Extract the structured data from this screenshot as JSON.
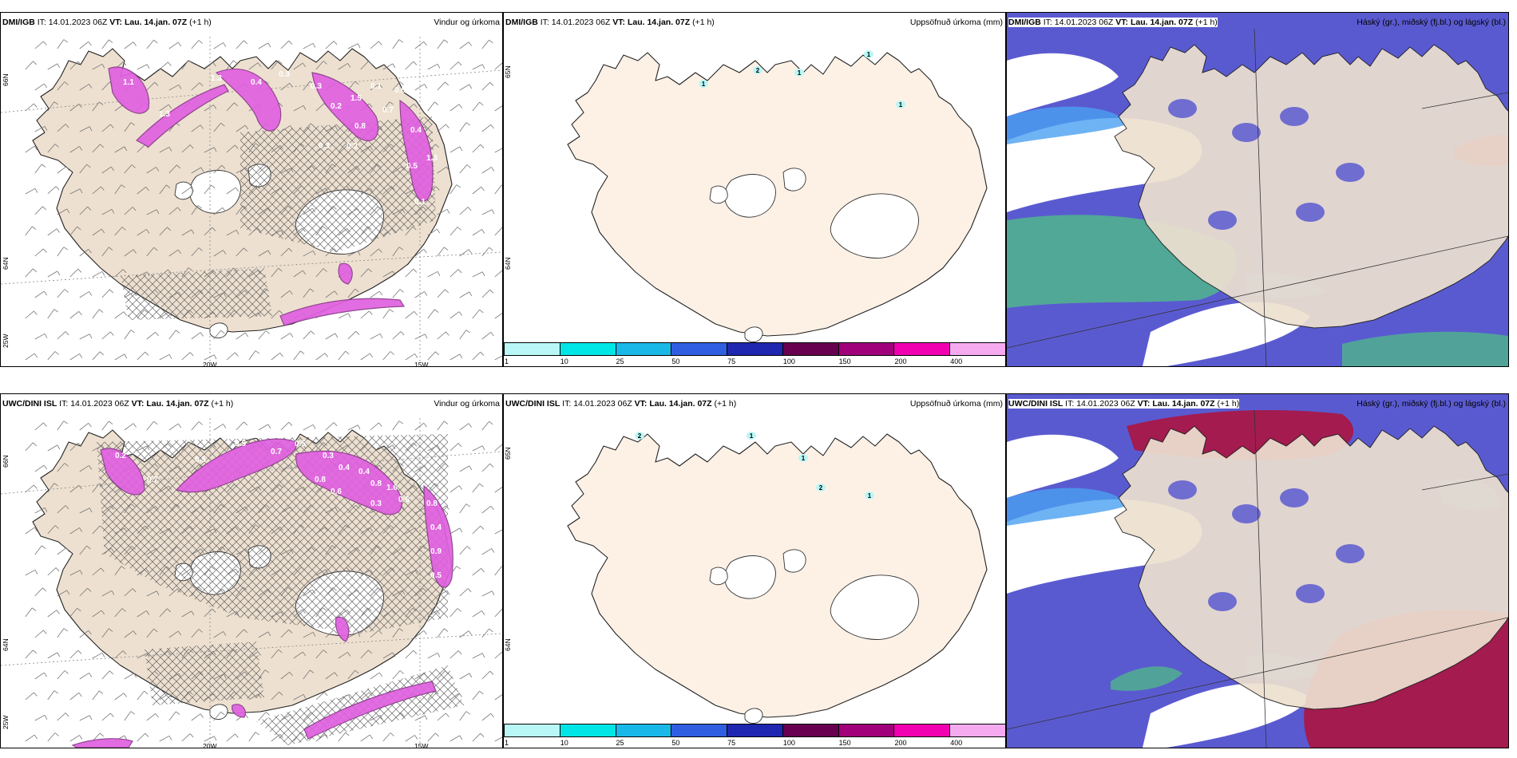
{
  "panels": [
    {
      "id": "p1",
      "model": "DMI/IGB",
      "it_label": "IT:",
      "it": "14.01.2023 06Z",
      "vt_label": "VT:",
      "vt": "Lau. 14.jan. 07Z",
      "lead": "(+1 h)",
      "right": "Vindur og úrkoma",
      "type": "wind",
      "lon_labels": [
        "20W",
        "15W"
      ],
      "lat_labels": [
        "66N",
        "64N",
        "25W"
      ],
      "values": [
        "1.1",
        "1.3",
        "1.3",
        "0.4",
        "0.3",
        "0.3",
        "0.2",
        "1.5",
        "0.1",
        "0.6",
        "0.4",
        "0.5",
        "0.1",
        "1.3",
        "0.8",
        "0.7",
        "0.3",
        "0.2"
      ]
    },
    {
      "id": "p2",
      "model": "DMI/IGB",
      "it_label": "IT:",
      "it": "14.01.2023 06Z",
      "vt_label": "VT:",
      "vt": "Lau. 14.jan. 07Z",
      "lead": "(+1 h)",
      "right": "Uppsöfnuð úrkoma (mm)",
      "type": "accum",
      "lat_labels": [
        "65N",
        "64N"
      ],
      "values": [
        "1",
        "2",
        "1",
        "1",
        "1"
      ]
    },
    {
      "id": "p3",
      "model": "DMI/IGB",
      "it_label": "IT:",
      "it": "14.01.2023 06Z",
      "vt_label": "VT:",
      "vt": "Lau. 14.jan. 07Z",
      "lead": "(+1 h)",
      "right": "Háský (gr.), miðský (fj.bl.) og lágský (bl.)",
      "type": "cloud",
      "high": false
    },
    {
      "id": "p4",
      "model": "UWC/DINI ISL",
      "it_label": "IT:",
      "it": "14.01.2023 06Z",
      "vt_label": "VT:",
      "vt": "Lau. 14.jan. 07Z",
      "lead": "(+1 h)",
      "right": "Vindur og úrkoma",
      "type": "wind",
      "lon_labels": [
        "20W",
        "15W"
      ],
      "lat_labels": [
        "66N",
        "64N",
        "25W"
      ],
      "values": [
        "0.2",
        "0.7",
        "0.5",
        "0.5",
        "0.4",
        "0.7",
        "0.5",
        "0.3",
        "0.4",
        "0.4",
        "0.8",
        "1.6",
        "0.6",
        "0.8",
        "0.4",
        "0.9",
        "0.5",
        "0.3",
        "0.6",
        "0.8"
      ]
    },
    {
      "id": "p5",
      "model": "UWC/DINI ISL",
      "it_label": "IT:",
      "it": "14.01.2023 06Z",
      "vt_label": "VT:",
      "vt": "Lau. 14.jan. 07Z",
      "lead": "(+1 h)",
      "right": "Uppsöfnuð úrkoma (mm)",
      "type": "accum",
      "lat_labels": [
        "65N",
        "64N"
      ],
      "values": [
        "2",
        "1",
        "1",
        "2",
        "1"
      ]
    },
    {
      "id": "p6",
      "model": "UWC/DINI ISL",
      "it_label": "IT:",
      "it": "14.01.2023 06Z",
      "vt_label": "VT:",
      "vt": "Lau. 14.jan. 07Z",
      "lead": "(+1 h)",
      "right": "Háský (gr.), miðský (fj.bl.) og lágský (bl.)",
      "type": "cloud",
      "high": true
    }
  ],
  "colorbar": {
    "colors": [
      "#b9f7f7",
      "#00e6e6",
      "#1ab8e8",
      "#2f5fe0",
      "#1f27b0",
      "#66004f",
      "#a0007a",
      "#f000b0",
      "#f5aaf0"
    ],
    "ticks": [
      "1",
      "10",
      "25",
      "50",
      "75",
      "100",
      "150",
      "200",
      "400"
    ]
  },
  "colors": {
    "land": "#ede0d0",
    "land_accum": "#fdf1e6",
    "precip": "#e060e0",
    "precip_dark": "#8a3a8a",
    "cloud_mid": "#5a5ad0",
    "cloud_low_edge": "#4aa0f0",
    "cloud_high": "#a81848",
    "cloud_green": "#50b090"
  }
}
